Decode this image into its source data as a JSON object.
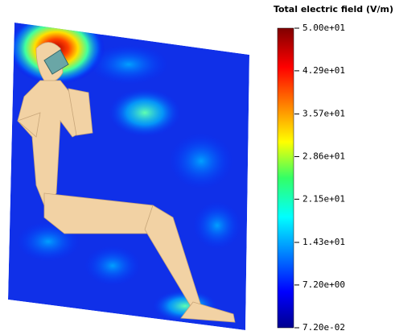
{
  "colorbar": {
    "title": "Total electric field (V/m)",
    "range": [
      0.072,
      50
    ],
    "ticks": [
      {
        "value": 50,
        "label": "5.00e+01"
      },
      {
        "value": 42.9,
        "label": "4.29e+01"
      },
      {
        "value": 35.7,
        "label": "3.57e+01"
      },
      {
        "value": 28.6,
        "label": "2.86e+01"
      },
      {
        "value": 21.5,
        "label": "2.15e+01"
      },
      {
        "value": 14.3,
        "label": "1.43e+01"
      },
      {
        "value": 7.2,
        "label": "7.20e+00"
      },
      {
        "value": 0.072,
        "label": "7.20e-02"
      }
    ]
  }
}
